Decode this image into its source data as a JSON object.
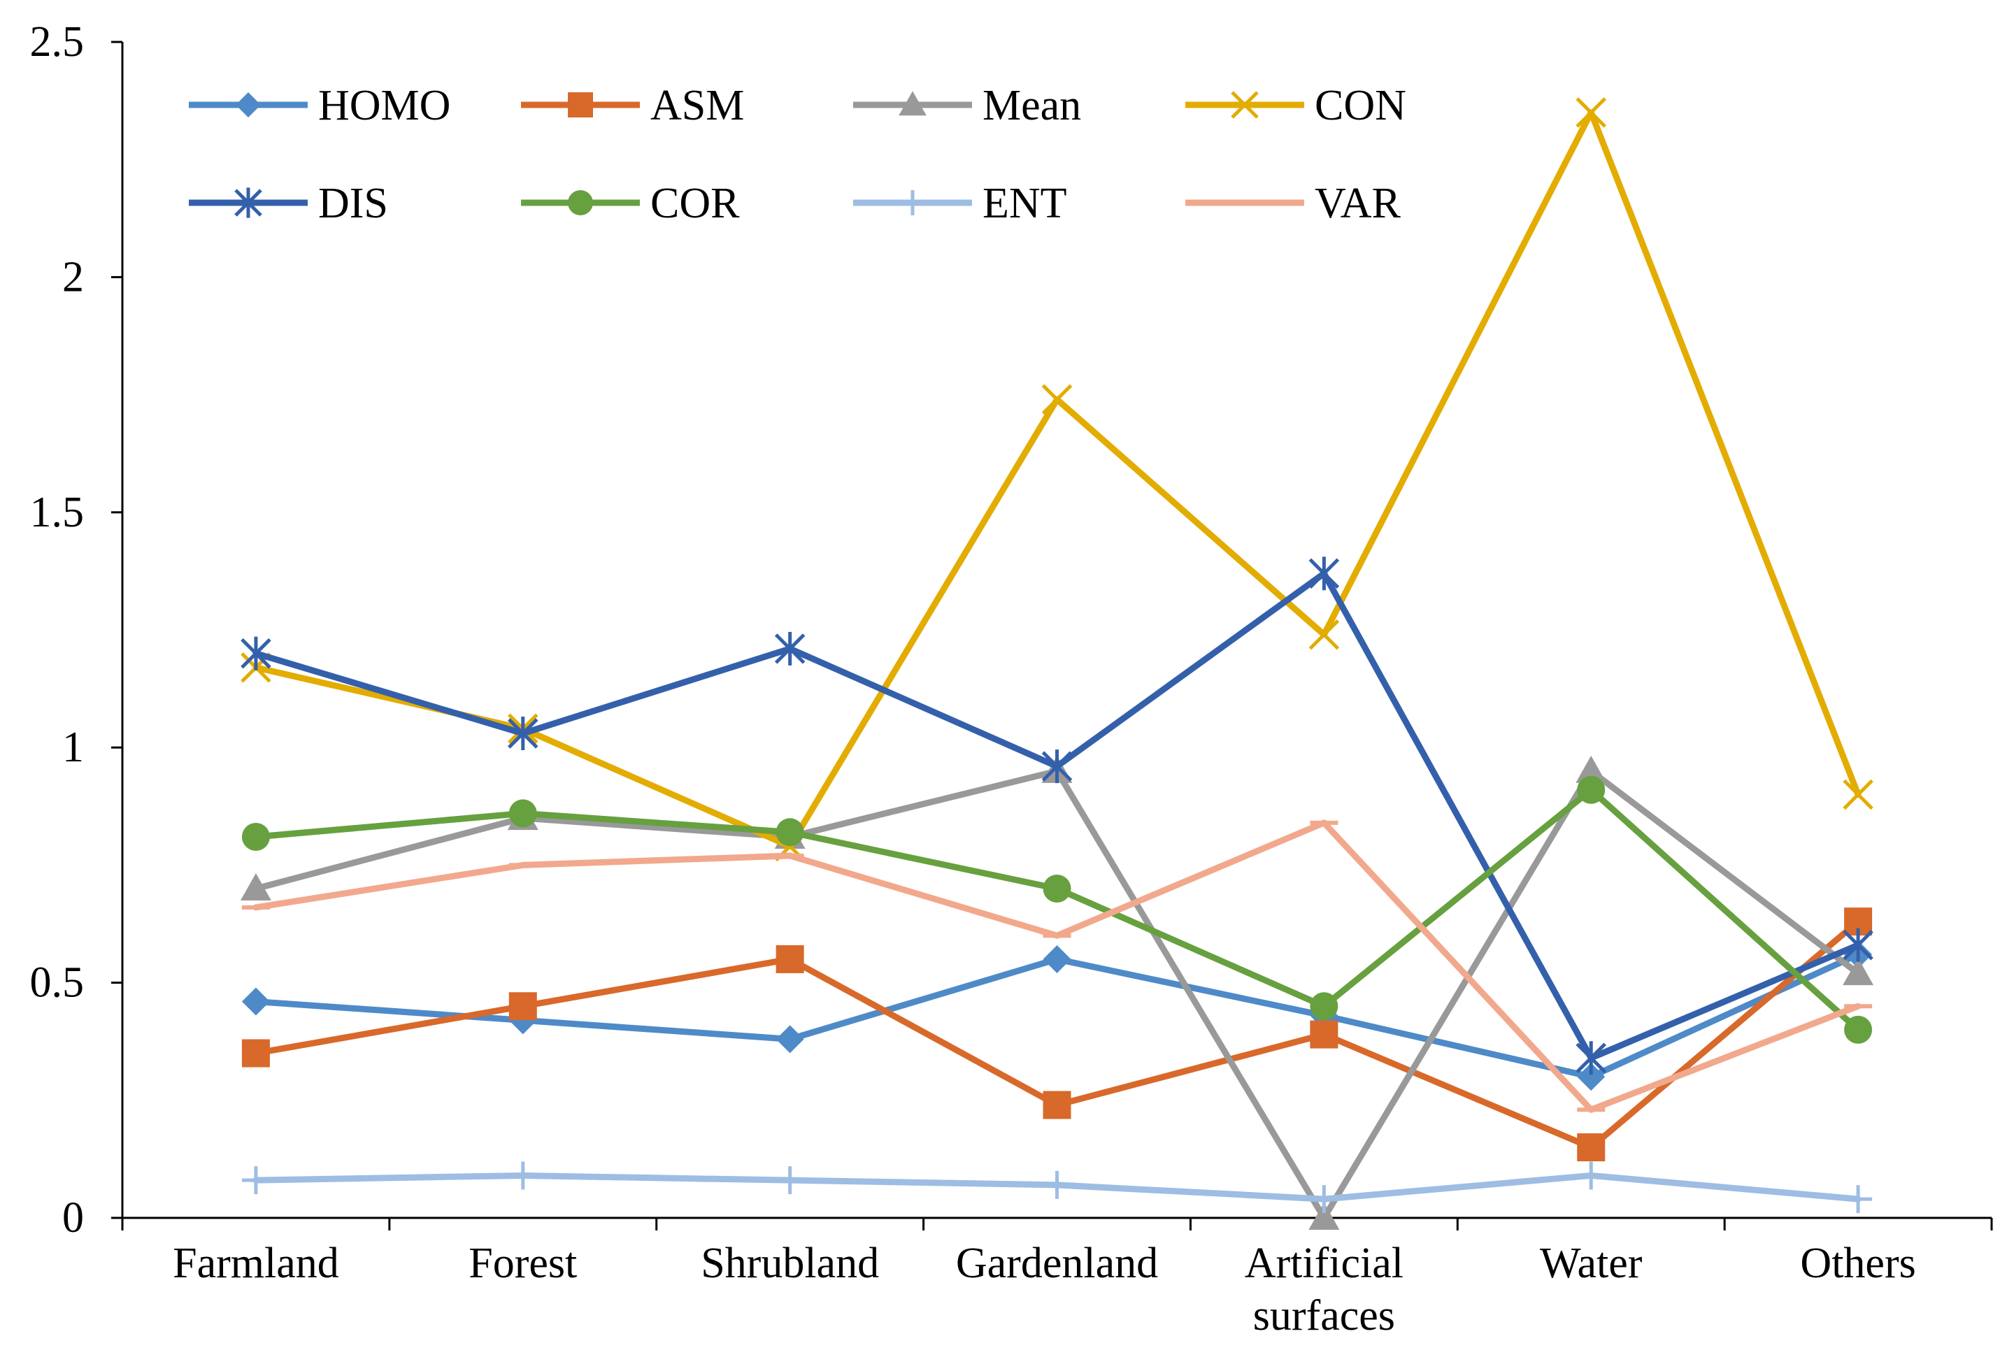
{
  "chart_data": {
    "type": "line",
    "title": "",
    "xlabel": "",
    "ylabel": "",
    "categories": [
      "Farmland",
      "Forest",
      "Shrubland",
      "Gardenland",
      "Artificial surfaces",
      "Water",
      "Others"
    ],
    "ylim": [
      0,
      2.5
    ],
    "yticks": [
      "0",
      "0.5",
      "1",
      "1.5",
      "2",
      "2.5"
    ],
    "grid": false,
    "legend_position": "top",
    "series": [
      {
        "name": "HOMO",
        "marker": "diamond",
        "color": "#4e8ac8",
        "values": [
          0.46,
          0.42,
          0.38,
          0.55,
          0.43,
          0.3,
          0.56
        ]
      },
      {
        "name": "ASM",
        "marker": "square",
        "color": "#d8692a",
        "values": [
          0.35,
          0.45,
          0.55,
          0.24,
          0.39,
          0.15,
          0.63
        ]
      },
      {
        "name": "Mean",
        "marker": "triangle",
        "color": "#999999",
        "values": [
          0.7,
          0.85,
          0.81,
          0.95,
          0.0,
          0.95,
          0.52
        ]
      },
      {
        "name": "CON",
        "marker": "x",
        "color": "#e3ac00",
        "values": [
          1.17,
          1.04,
          0.79,
          1.74,
          1.24,
          2.35,
          0.9
        ]
      },
      {
        "name": "DIS",
        "marker": "star",
        "color": "#3460ab",
        "values": [
          1.2,
          1.03,
          1.21,
          0.96,
          1.37,
          0.34,
          0.58
        ]
      },
      {
        "name": "COR",
        "marker": "circle",
        "color": "#67a03f",
        "values": [
          0.81,
          0.86,
          0.82,
          0.7,
          0.45,
          0.91,
          0.4
        ]
      },
      {
        "name": "ENT",
        "marker": "plus",
        "color": "#9dbde3",
        "values": [
          0.08,
          0.09,
          0.08,
          0.07,
          0.04,
          0.09,
          0.04
        ]
      },
      {
        "name": "VAR",
        "marker": "dash",
        "color": "#f2a88c",
        "values": [
          0.66,
          0.75,
          0.77,
          0.6,
          0.84,
          0.23,
          0.45
        ]
      }
    ]
  }
}
